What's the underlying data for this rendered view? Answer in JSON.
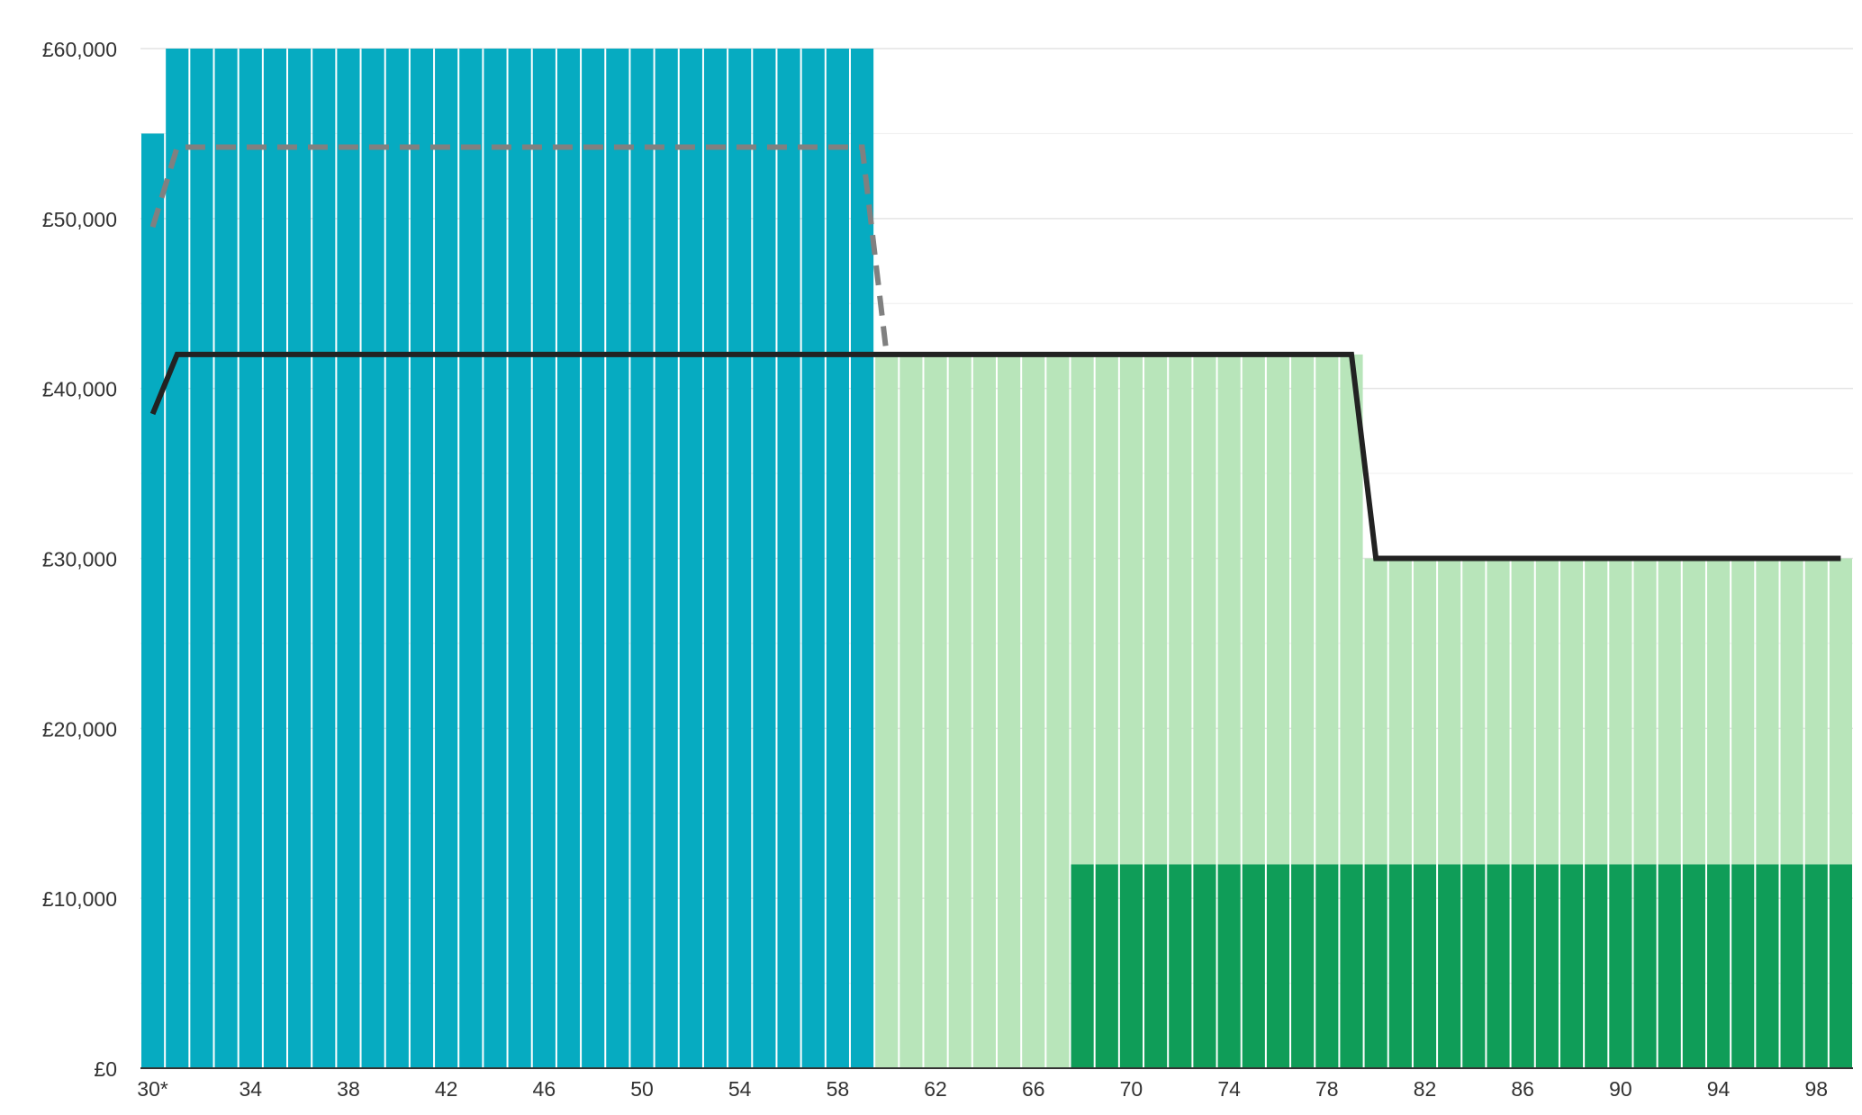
{
  "chart_data": {
    "type": "bar",
    "stacked": true,
    "x_start": 30,
    "x_end": 99,
    "x_tick_labels": [
      "30*",
      "34",
      "38",
      "42",
      "46",
      "50",
      "54",
      "58",
      "62",
      "66",
      "70",
      "74",
      "78",
      "82",
      "86",
      "90",
      "94",
      "98"
    ],
    "x_tick_values": [
      30,
      34,
      38,
      42,
      46,
      50,
      54,
      58,
      62,
      66,
      70,
      74,
      78,
      82,
      86,
      90,
      94,
      98
    ],
    "y_tick_labels": [
      "£0",
      "£10,000",
      "£20,000",
      "£30,000",
      "£40,000",
      "£50,000",
      "£60,000"
    ],
    "y_tick_values": [
      0,
      10000,
      20000,
      30000,
      40000,
      50000,
      60000
    ],
    "ylim": [
      0,
      60000
    ],
    "grid": true,
    "colors": {
      "salary": "#06abc1",
      "pension_income": "#b8e5ba",
      "state_pension": "#0f9d58",
      "net_income": "#222222",
      "target": "#808080"
    },
    "series": [
      {
        "key": "salary",
        "kind": "bar",
        "segments": [
          {
            "from": 30,
            "to": 30,
            "value": 55000
          },
          {
            "from": 31,
            "to": 59,
            "value": 60000
          }
        ]
      },
      {
        "key": "state_pension",
        "kind": "bar",
        "segments": [
          {
            "from": 68,
            "to": 99,
            "value": 12000
          }
        ]
      },
      {
        "key": "pension_income",
        "kind": "bar",
        "segments": [
          {
            "from": 60,
            "to": 67,
            "value": 42000
          },
          {
            "from": 68,
            "to": 79,
            "value": 30000
          },
          {
            "from": 80,
            "to": 99,
            "value": 18000
          }
        ]
      },
      {
        "key": "net_income",
        "kind": "line",
        "style": "solid",
        "points": [
          [
            30,
            38500
          ],
          [
            31,
            42000
          ],
          [
            79,
            42000
          ],
          [
            80,
            30000
          ],
          [
            99,
            30000
          ]
        ]
      },
      {
        "key": "target",
        "kind": "line",
        "style": "dashed",
        "points": [
          [
            30,
            49500
          ],
          [
            31,
            54200
          ],
          [
            59,
            54200
          ],
          [
            60,
            42000
          ]
        ]
      }
    ]
  }
}
